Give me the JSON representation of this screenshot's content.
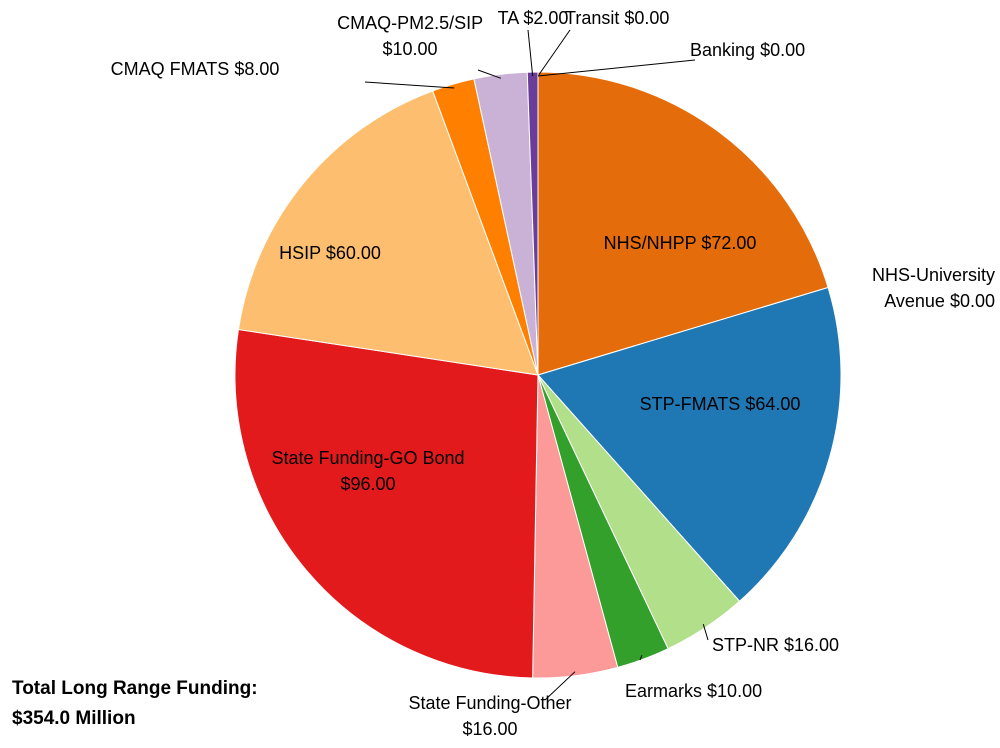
{
  "chart_data": {
    "type": "pie",
    "categories": [
      "NHS/NHPP",
      "NHS-University Avenue",
      "STP-FMATS",
      "STP-NR",
      "Earmarks",
      "State Funding-Other",
      "State Funding-GO Bond",
      "HSIP",
      "CMAQ FMATS",
      "CMAQ-PM2.5/SIP",
      "TA",
      "Transit",
      "Banking"
    ],
    "values": [
      72,
      0,
      64,
      16,
      10,
      16,
      96,
      60,
      8,
      10,
      2,
      0,
      0
    ],
    "value_labels": [
      "$72.00",
      "$0.00",
      "$64.00",
      "$16.00",
      "$10.00",
      "$16.00",
      "$96.00",
      "$60.00",
      "$8.00",
      "$10.00",
      "$2.00",
      "$0.00",
      "$0.00"
    ],
    "colors": [
      "#e46c0a",
      "#a6cee3",
      "#1f78b4",
      "#b2df8a",
      "#33a02c",
      "#fb9a99",
      "#e31a1c",
      "#fdbf6f",
      "#ff7f00",
      "#cab2d6",
      "#6a3d9a",
      "#ffff99",
      "#b15928"
    ],
    "annotation": "Total Long Range Funding: $354.0 Million"
  }
}
